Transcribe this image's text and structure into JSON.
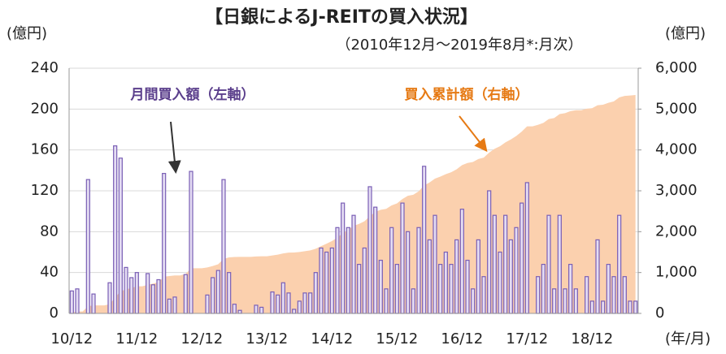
{
  "chart_data": {
    "type": "bar-area",
    "title": "【日銀によるJ-REITの買入状況】",
    "subtitle": "（2010年12月～2019年8月*:月次）",
    "y_unit": "(億円)",
    "y2_unit": "(億円)",
    "x_unit": "(年/月)",
    "categories": [
      "10/12",
      null,
      null,
      null,
      null,
      null,
      null,
      null,
      null,
      null,
      null,
      null,
      "11/12",
      null,
      null,
      null,
      null,
      null,
      null,
      null,
      null,
      null,
      null,
      null,
      "12/12",
      null,
      null,
      null,
      null,
      null,
      null,
      null,
      null,
      null,
      null,
      null,
      "13/12",
      null,
      null,
      null,
      null,
      null,
      null,
      null,
      null,
      null,
      null,
      null,
      "14/12",
      null,
      null,
      null,
      null,
      null,
      null,
      null,
      null,
      null,
      null,
      null,
      "15/12",
      null,
      null,
      null,
      null,
      null,
      null,
      null,
      null,
      null,
      null,
      null,
      "16/12",
      null,
      null,
      null,
      null,
      null,
      null,
      null,
      null,
      null,
      null,
      null,
      "17/12",
      null,
      null,
      null,
      null,
      null,
      null,
      null,
      null,
      null,
      null,
      null,
      "18/12",
      null,
      null,
      null,
      null,
      null,
      null,
      null,
      null
    ],
    "series": [
      {
        "name": "月間買入額（左軸）",
        "color": "#7a5fb5",
        "fill": "#e4dcf3",
        "type": "bar",
        "values": [
          22,
          24,
          0,
          131,
          19,
          0,
          0,
          30,
          164,
          152,
          45,
          35,
          40,
          0,
          39,
          28,
          33,
          137,
          14,
          16,
          0,
          38,
          139,
          0,
          0,
          18,
          35,
          42,
          131,
          40,
          9,
          3,
          0,
          0,
          8,
          6,
          0,
          21,
          18,
          30,
          20,
          4,
          12,
          20,
          20,
          40,
          64,
          60,
          64,
          84,
          108,
          84,
          96,
          48,
          64,
          124,
          104,
          52,
          24,
          84,
          48,
          108,
          80,
          24,
          84,
          144,
          72,
          96,
          48,
          60,
          48,
          72,
          102,
          52,
          24,
          72,
          36,
          120,
          96,
          60,
          96,
          72,
          84,
          108,
          128,
          0,
          36,
          48,
          96,
          24,
          96,
          24,
          48,
          24,
          0,
          36,
          12,
          72,
          12,
          48,
          36,
          96,
          36,
          12,
          12
        ]
      },
      {
        "name": "買入累計額（右軸）",
        "color": "#fbd0ae",
        "label_color": "#e67a14",
        "type": "area",
        "axis": "y2",
        "values": [
          22,
          46,
          46,
          177,
          196,
          196,
          196,
          226,
          390,
          542,
          587,
          622,
          662,
          662,
          701,
          729,
          762,
          899,
          913,
          929,
          929,
          967,
          1106,
          1106,
          1106,
          1124,
          1159,
          1201,
          1332,
          1372,
          1381,
          1384,
          1384,
          1384,
          1392,
          1398,
          1398,
          1419,
          1437,
          1467,
          1487,
          1491,
          1503,
          1523,
          1543,
          1583,
          1647,
          1707,
          1771,
          1855,
          1963,
          2047,
          2143,
          2191,
          2255,
          2379,
          2483,
          2535,
          2559,
          2643,
          2691,
          2799,
          2879,
          2903,
          2987,
          3131,
          3203,
          3299,
          3347,
          3407,
          3455,
          3527,
          3629,
          3681,
          3705,
          3777,
          3813,
          3933,
          4029,
          4089,
          4185,
          4257,
          4341,
          4449,
          4577,
          4577,
          4613,
          4661,
          4757,
          4781,
          4877,
          4901,
          4949,
          4973,
          4973,
          5009,
          5021,
          5093,
          5105,
          5153,
          5189,
          5285,
          5321,
          5333,
          5345
        ]
      }
    ],
    "ylim": [
      0,
      240
    ],
    "yticks": [
      0,
      40,
      80,
      120,
      160,
      200,
      240
    ],
    "y2lim": [
      0,
      6000
    ],
    "y2ticks": [
      {
        "value": 0,
        "label": "0"
      },
      {
        "value": 1000,
        "label": "1,000"
      },
      {
        "value": 2000,
        "label": "2,000"
      },
      {
        "value": 3000,
        "label": "3,000"
      },
      {
        "value": 4000,
        "label": "4,000"
      },
      {
        "value": 5000,
        "label": "5,000"
      },
      {
        "value": 6000,
        "label": "6,000"
      }
    ],
    "grid": true
  }
}
